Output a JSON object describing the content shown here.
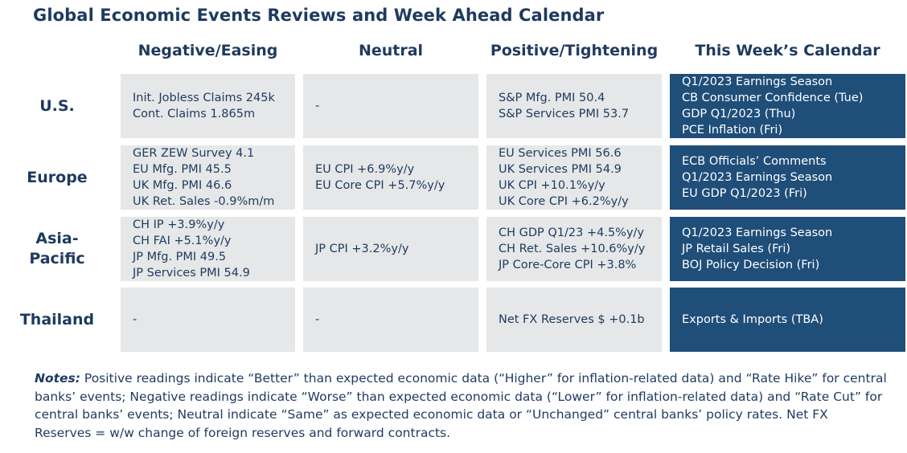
{
  "title": "Global Economic Events Reviews and Week Ahead Calendar",
  "columns": [
    "Negative/Easing",
    "Neutral",
    "Positive/Tightening",
    "This Week’s Calendar"
  ],
  "rows": [
    {
      "region_lines": [
        "U.S."
      ],
      "negative": [
        "Init. Jobless Claims 245k",
        "Cont. Claims 1.865m"
      ],
      "neutral": [
        "-"
      ],
      "positive": [
        "S&P Mfg. PMI 50.4",
        "S&P Services PMI 53.7"
      ],
      "calendar": [
        "Q1/2023 Earnings Season",
        "CB Consumer Confidence (Tue)",
        "GDP Q1/2023 (Thu)",
        "PCE Inflation (Fri)"
      ]
    },
    {
      "region_lines": [
        "Europe"
      ],
      "negative": [
        "GER ZEW Survey 4.1",
        "EU Mfg. PMI 45.5",
        "UK Mfg. PMI 46.6",
        "UK Ret. Sales -0.9%m/m"
      ],
      "neutral": [
        "EU CPI +6.9%y/y",
        "EU Core CPI +5.7%y/y"
      ],
      "positive": [
        "EU Services PMI 56.6",
        "UK Services PMI 54.9",
        "UK CPI +10.1%y/y",
        "UK Core CPI +6.2%y/y"
      ],
      "calendar": [
        "ECB Officials’ Comments",
        "Q1/2023 Earnings Season",
        "EU GDP Q1/2023 (Fri)"
      ]
    },
    {
      "region_lines": [
        "Asia-",
        "Pacific"
      ],
      "negative": [
        "CH IP +3.9%y/y",
        "CH FAI +5.1%y/y",
        "JP Mfg. PMI 49.5",
        "JP Services PMI 54.9"
      ],
      "neutral": [
        "JP CPI +3.2%y/y"
      ],
      "positive": [
        "CH GDP Q1/23 +4.5%y/y",
        "CH Ret. Sales +10.6%y/y",
        "JP Core-Core CPI +3.8%"
      ],
      "calendar": [
        "Q1/2023 Earnings Season",
        "JP Retail Sales (Fri)",
        "BOJ Policy Decision (Fri)"
      ]
    },
    {
      "region_lines": [
        "Thailand"
      ],
      "negative": [
        "-"
      ],
      "neutral": [
        "-"
      ],
      "positive": [
        "Net FX Reserves $ +0.1b"
      ],
      "calendar": [
        "Exports & Imports (TBA)"
      ]
    }
  ],
  "notes": {
    "label": "Notes:",
    "text": " Positive readings indicate “Better” than expected economic data (“Higher” for inflation-related data) and “Rate Hike” for central banks’ events; Negative readings indicate “Worse” than expected economic data (“Lower” for inflation-related data) and “Rate Cut” for central banks’ events; Neutral indicate “Same” as expected economic data or “Unchanged” central banks’ policy rates. Net FX Reserves = w/w change of foreign reserves and forward contracts."
  },
  "colors": {
    "title": "#1f3a5f",
    "light_cell": "#e6e7e8",
    "dark_cell": "#1f4e79",
    "dark_cell_text": "#ffffff"
  }
}
